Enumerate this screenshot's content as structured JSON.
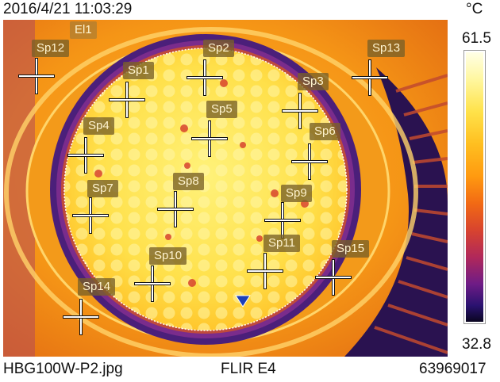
{
  "header": {
    "timestamp": "2016/4/21 11:03:29",
    "unit": "°C"
  },
  "scale": {
    "max": "61.5",
    "min": "32.8"
  },
  "footer": {
    "filename": "HBG100W-P2.jpg",
    "camera": "FLIR E4",
    "serial": "63969017"
  },
  "ellipse_label": "El1",
  "spots": [
    {
      "label": "Sp12"
    },
    {
      "label": "Sp1"
    },
    {
      "label": "Sp2"
    },
    {
      "label": "Sp13"
    },
    {
      "label": "Sp3"
    },
    {
      "label": "Sp4"
    },
    {
      "label": "Sp5"
    },
    {
      "label": "Sp6"
    },
    {
      "label": "Sp7"
    },
    {
      "label": "Sp8"
    },
    {
      "label": "Sp9"
    },
    {
      "label": "Sp10"
    },
    {
      "label": "Sp11"
    },
    {
      "label": "Sp15"
    },
    {
      "label": "Sp14"
    }
  ],
  "colors": {
    "hot": "#ffe34d",
    "warm": "#ff9a1a",
    "cool": "#6a1f8f",
    "cold": "#120a2e"
  }
}
